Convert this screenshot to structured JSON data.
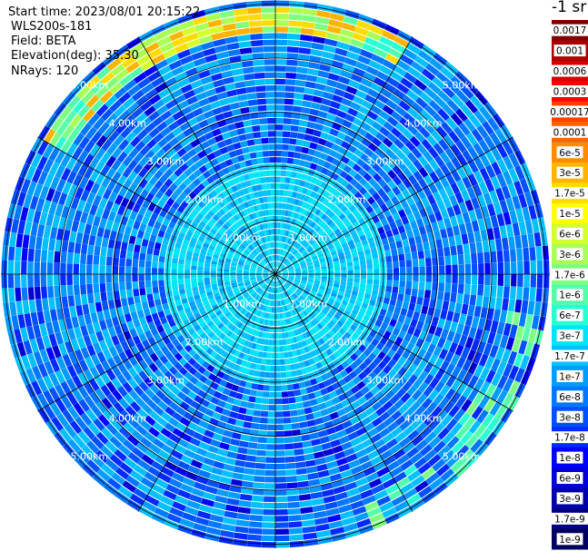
{
  "header": {
    "start_time": "Start time: 2023/08/01 20:15:22",
    "instrument": "WLS200s-181",
    "field": "Field: BETA",
    "elevation": "Elevation(deg): 35.30",
    "nrays": "NRays: 120"
  },
  "chart_data": {
    "type": "heatmap",
    "projection": "polar (PPI scan)",
    "field": "BETA",
    "n_rays": 120,
    "elevation_deg": 35.3,
    "max_range_km": 5.0,
    "range_rings_km": [
      1.0,
      2.0,
      3.0,
      4.0,
      5.0
    ],
    "ring_labels": [
      "1.00km",
      "2.00km",
      "3.00km",
      "4.00km",
      "5.00km"
    ],
    "spoke_interval_deg": 30,
    "colorbar": {
      "unit_label": "-1 sr",
      "tick_labels": [
        "0.0017",
        "0.001",
        "0.0006",
        "0.0003",
        "0.00017",
        "0.0001",
        "6e-5",
        "3e-5",
        "1.7e-5",
        "1e-5",
        "6e-6",
        "3e-6",
        "1.7e-6",
        "1e-6",
        "6e-7",
        "3e-7",
        "1.7e-7",
        "1e-7",
        "6e-8",
        "3e-8",
        "1.7e-8",
        "1e-8",
        "6e-9",
        "3e-9",
        "1.7e-9",
        "1e-9"
      ],
      "colors": [
        "#800000",
        "#aa0000",
        "#d40000",
        "#ff0000",
        "#ff4000",
        "#ff6400",
        "#ff8c00",
        "#ffb400",
        "#ffdc00",
        "#ffff00",
        "#d4ff2a",
        "#aaff55",
        "#7fff7f",
        "#55ffaa",
        "#2affd4",
        "#00e4f8",
        "#00c0ff",
        "#009cff",
        "#0078ff",
        "#0050ff",
        "#0028ff",
        "#0000ff",
        "#0000d4",
        "#0000aa",
        "#00007f",
        "#000060"
      ]
    },
    "background_level_description_values": {
      "inner_zone_0_to_2km": "3e-7 to 1e-6",
      "outer_zone_2_to_5km": "1.7e-8 to 3e-7",
      "enhanced_arc_north_northwest_4.5_to_5km": "1e-5 to 1e-4"
    }
  }
}
